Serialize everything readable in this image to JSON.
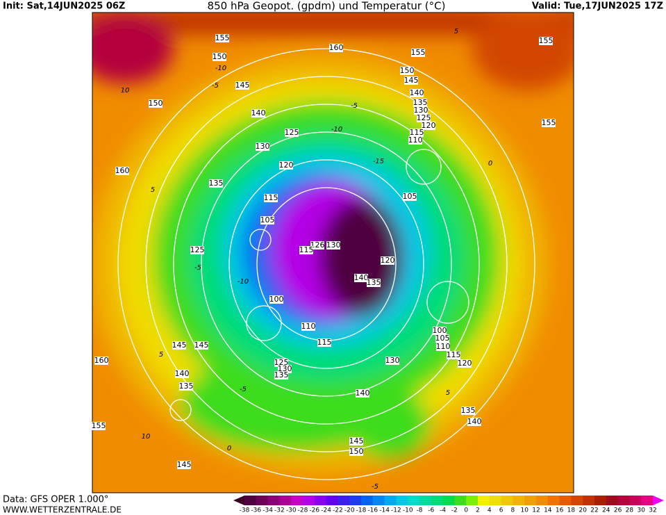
{
  "header": {
    "init": "Init: Sat,14JUN2025 06Z",
    "title": "850 hPa Geopot. (gpdm) und Temperatur (°C)",
    "valid": "Valid: Tue,17JUN2025 17Z"
  },
  "footer": {
    "data": "Data: GFS OPER 1.000°",
    "site": "WWW.WETTERZENTRALE.DE"
  },
  "map": {
    "geopotential_labels": [
      155,
      150,
      160,
      155,
      150,
      145,
      140,
      135,
      130,
      125,
      120,
      115,
      110,
      145,
      150,
      140,
      125,
      130,
      120,
      135,
      115,
      105,
      125,
      160,
      105,
      100,
      110,
      115,
      100,
      105,
      110,
      115,
      120,
      130,
      125,
      130,
      135,
      140,
      145,
      145,
      140,
      135,
      160,
      155,
      145,
      145,
      150,
      135,
      140,
      155,
      155,
      120,
      140,
      135,
      126,
      130,
      115
    ],
    "temperature_labels": [
      -5,
      -10,
      -15,
      -10,
      5,
      -5,
      10,
      5,
      -5,
      -10,
      0,
      5,
      -5,
      10,
      5,
      0,
      -5
    ]
  },
  "colorbar": {
    "ticks": [
      -38,
      -36,
      -34,
      -32,
      -30,
      -28,
      -26,
      -24,
      -22,
      -20,
      -18,
      -16,
      -14,
      -12,
      -10,
      -8,
      -6,
      -4,
      -2,
      0,
      2,
      4,
      6,
      8,
      10,
      12,
      14,
      16,
      18,
      20,
      22,
      24,
      26,
      28,
      30,
      32
    ],
    "colors": [
      "#3c0028",
      "#500040",
      "#6e005a",
      "#8c0078",
      "#aa0096",
      "#c800c8",
      "#b400e6",
      "#8c00f0",
      "#6400f0",
      "#3c1ef0",
      "#1e3cf0",
      "#0064f0",
      "#0088f0",
      "#00aaf0",
      "#00c8e6",
      "#00dcc8",
      "#00dca0",
      "#00dc78",
      "#00dc50",
      "#3cdc1e",
      "#78f000",
      "#f0f000",
      "#f0dc00",
      "#f0c800",
      "#f0b400",
      "#f0a000",
      "#f08c00",
      "#f07300",
      "#e65a00",
      "#d24600",
      "#c03200",
      "#aa1e00",
      "#a00a1e",
      "#b4003c",
      "#c8005a",
      "#e60082",
      "#f000b4",
      "#f000f0"
    ]
  }
}
